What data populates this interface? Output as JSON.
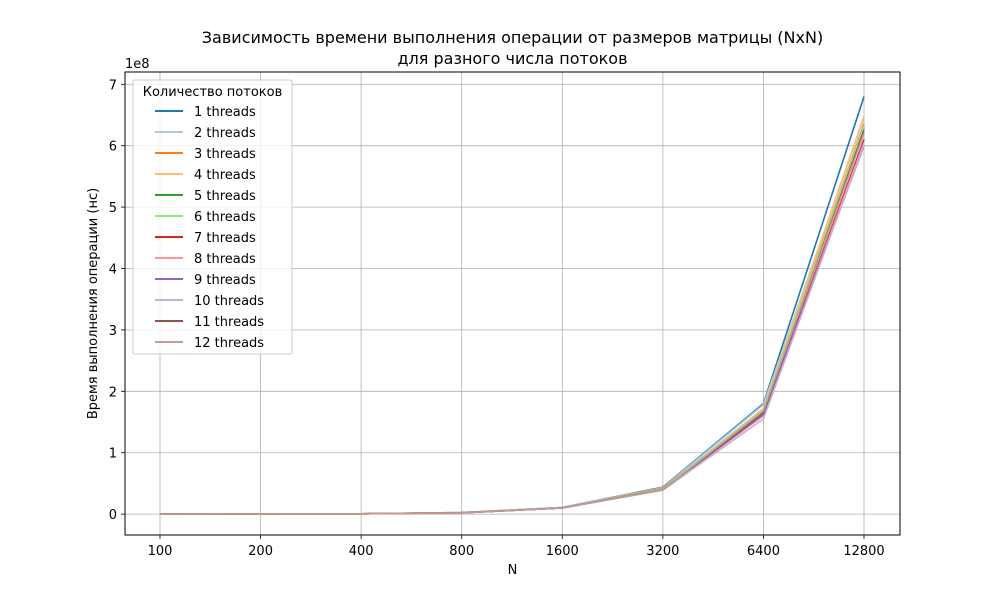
{
  "chart_data": {
    "type": "line",
    "title_line1": "Зависимость времени выполнения операции от размеров матрицы (NxN)",
    "title_line2": "для разного числа потоков",
    "xlabel": "N",
    "ylabel": "Время выполнения операции (нс)",
    "y_scale_label": "1e8",
    "x": [
      "100",
      "200",
      "400",
      "800",
      "1600",
      "3200",
      "6400",
      "12800"
    ],
    "ylim": [
      -0.34,
      7.2
    ],
    "y_unit_multiplier": 100000000,
    "yticks": [
      0,
      1,
      2,
      3,
      4,
      5,
      6,
      7
    ],
    "grid": true,
    "legend": {
      "title": "Количество потоков",
      "placement": "top-left"
    },
    "series": [
      {
        "name": "1 threads",
        "color": "#1f77b4",
        "values": [
          0.001,
          0.003,
          0.005,
          0.025,
          0.11,
          0.44,
          1.8,
          6.8
        ]
      },
      {
        "name": "2 threads",
        "color": "#aec7e8",
        "values": [
          0.001,
          0.003,
          0.005,
          0.024,
          0.11,
          0.43,
          1.78,
          6.45
        ]
      },
      {
        "name": "3 threads",
        "color": "#ff7f0e",
        "values": [
          0.001,
          0.003,
          0.005,
          0.024,
          0.1,
          0.42,
          1.7,
          6.35
        ]
      },
      {
        "name": "4 threads",
        "color": "#ffbb78",
        "values": [
          0.001,
          0.003,
          0.005,
          0.023,
          0.1,
          0.41,
          1.72,
          6.48
        ]
      },
      {
        "name": "5 threads",
        "color": "#2ca02c",
        "values": [
          0.001,
          0.003,
          0.005,
          0.023,
          0.1,
          0.41,
          1.68,
          6.3
        ]
      },
      {
        "name": "6 threads",
        "color": "#98df8a",
        "values": [
          0.001,
          0.003,
          0.005,
          0.023,
          0.1,
          0.41,
          1.7,
          6.32
        ]
      },
      {
        "name": "7 threads",
        "color": "#d62728",
        "values": [
          0.001,
          0.003,
          0.005,
          0.023,
          0.1,
          0.4,
          1.62,
          6.1
        ]
      },
      {
        "name": "8 threads",
        "color": "#ff9896",
        "values": [
          0.001,
          0.003,
          0.005,
          0.022,
          0.1,
          0.4,
          1.6,
          6.05
        ]
      },
      {
        "name": "9 threads",
        "color": "#9467bd",
        "values": [
          0.001,
          0.003,
          0.005,
          0.022,
          0.1,
          0.4,
          1.62,
          6.0
        ]
      },
      {
        "name": "10 threads",
        "color": "#c5b0d5",
        "values": [
          0.001,
          0.003,
          0.005,
          0.022,
          0.1,
          0.39,
          1.55,
          6.02
        ]
      },
      {
        "name": "11 threads",
        "color": "#8c564b",
        "values": [
          0.001,
          0.003,
          0.005,
          0.022,
          0.1,
          0.4,
          1.65,
          6.25
        ]
      },
      {
        "name": "12 threads",
        "color": "#c49c94",
        "values": [
          0.001,
          0.003,
          0.005,
          0.022,
          0.1,
          0.4,
          1.68,
          6.2
        ]
      }
    ]
  }
}
